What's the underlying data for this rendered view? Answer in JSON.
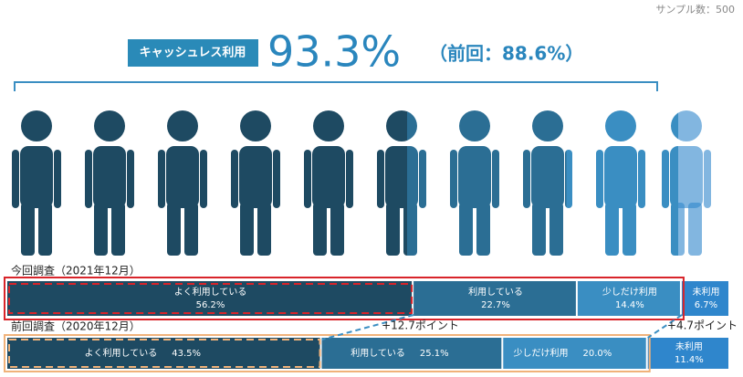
{
  "chart_data": {
    "type": "stacked-bar",
    "sample_note": "サンプル数：500",
    "headline_label": "キャッシュレス利用",
    "headline_value": "93.3%",
    "headline_previous": "（前回：88.6%）",
    "categories": [
      "今回調査（2021年12月）",
      "前回調査（2020年12月）"
    ],
    "series": [
      {
        "name": "よく利用している",
        "color": "#1e4a62",
        "values": [
          56.2,
          43.5
        ],
        "value_labels": [
          "56.2%",
          "43.5%"
        ]
      },
      {
        "name": "利用している",
        "color": "#2b6e94",
        "values": [
          22.7,
          25.1
        ],
        "value_labels": [
          "22.7%",
          "25.1%"
        ]
      },
      {
        "name": "少しだけ利用",
        "color": "#3a8ec2",
        "values": [
          14.4,
          20.0
        ],
        "value_labels": [
          "14.4%",
          "20.0%"
        ]
      },
      {
        "name": "未利用",
        "color": "#2f86cc",
        "values": [
          6.7,
          11.4
        ],
        "value_labels": [
          "6.7%",
          "11.4%"
        ]
      }
    ],
    "annotations": [
      "+12.7ポイント",
      "+4.7ポイント"
    ],
    "xlim": [
      0,
      100
    ]
  }
}
